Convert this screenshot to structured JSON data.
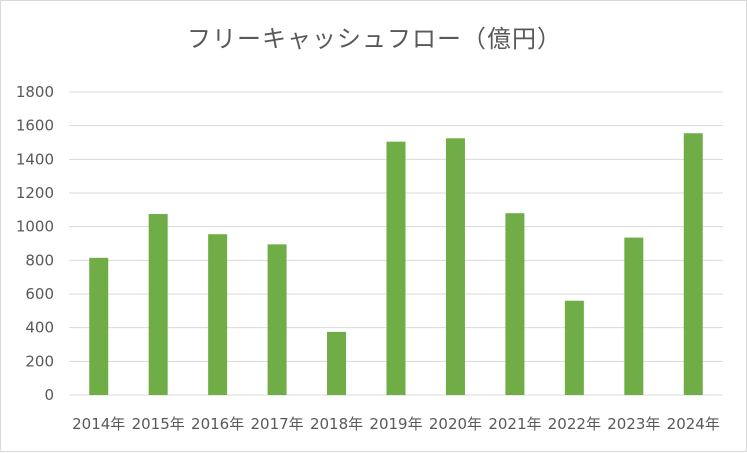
{
  "chart_data": {
    "type": "bar",
    "title": "フリーキャッシュフロー（億円）",
    "xlabel": "",
    "ylabel": "",
    "categories": [
      "2014年",
      "2015年",
      "2016年",
      "2017年",
      "2018年",
      "2019年",
      "2020年",
      "2021年",
      "2022年",
      "2023年",
      "2024年"
    ],
    "values": [
      815,
      1075,
      955,
      895,
      375,
      1505,
      1525,
      1080,
      560,
      935,
      1555
    ],
    "ylim": [
      0,
      1800
    ],
    "yticks": [
      0,
      200,
      400,
      600,
      800,
      1000,
      1200,
      1400,
      1600,
      1800
    ],
    "grid": true,
    "legend": "none",
    "colors": {
      "bar": "#70ad47",
      "grid": "#d9d9d9",
      "text": "#595959"
    }
  }
}
